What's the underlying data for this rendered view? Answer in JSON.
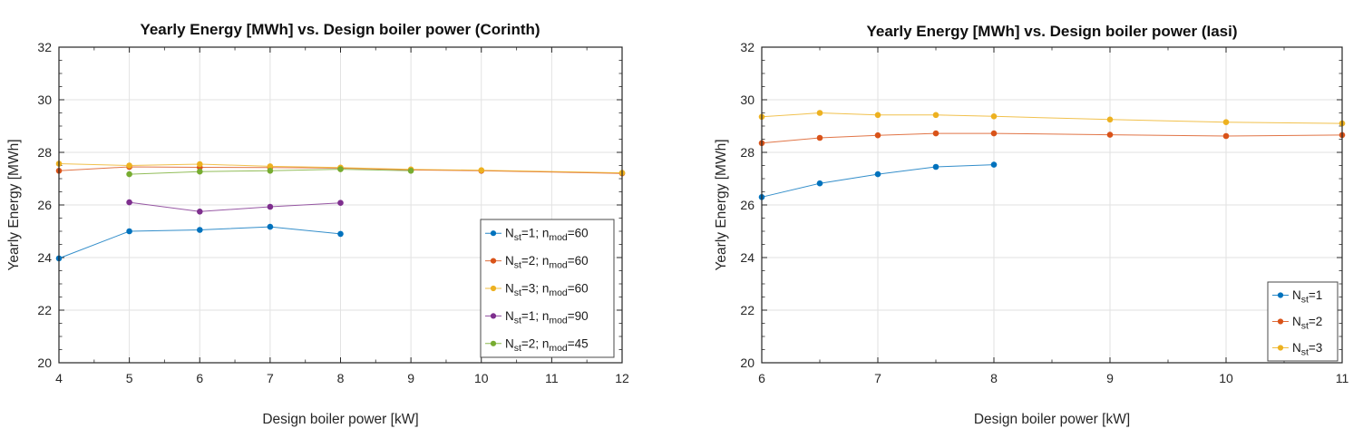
{
  "figure": {
    "background": "#ffffff",
    "description": "Two MATLAB-style line charts of yearly energy versus design boiler power"
  },
  "chart_data": [
    {
      "type": "line",
      "title": "Yearly Energy [MWh] vs. Design boiler power (Corinth)",
      "xlabel": "Design boiler power [kW]",
      "ylabel": "Yearly Energy [MWh]",
      "xlim": [
        4,
        12
      ],
      "ylim": [
        20,
        32
      ],
      "xticks": [
        4,
        5,
        6,
        7,
        8,
        9,
        10,
        11,
        12
      ],
      "yticks": [
        20,
        22,
        24,
        26,
        28,
        30,
        32
      ],
      "minor_tick_step_x": 0.5,
      "minor_tick_step_y": 0.5,
      "grid": true,
      "legend_position": "inside-lower-right",
      "series": [
        {
          "name": "N_st=1; n_mod=60",
          "color": "#0072BD",
          "x": [
            4,
            5,
            6,
            7,
            8
          ],
          "y": [
            23.97,
            25.0,
            25.05,
            25.17,
            24.9
          ]
        },
        {
          "name": "N_st=2; n_mod=60",
          "color": "#D95319",
          "x": [
            4,
            5,
            6,
            7,
            8,
            9,
            10,
            12
          ],
          "y": [
            27.3,
            27.45,
            27.43,
            27.42,
            27.4,
            27.33,
            27.3,
            27.2
          ]
        },
        {
          "name": "N_st=3; n_mod=60",
          "color": "#EDB120",
          "x": [
            4,
            5,
            6,
            7,
            8,
            9,
            10,
            12
          ],
          "y": [
            27.57,
            27.5,
            27.55,
            27.47,
            27.42,
            27.35,
            27.32,
            27.22
          ]
        },
        {
          "name": "N_st=1; n_mod=90",
          "color": "#7E2F8E",
          "x": [
            5,
            6,
            7,
            8
          ],
          "y": [
            26.1,
            25.75,
            25.93,
            26.08
          ]
        },
        {
          "name": "N_st=2; n_mod=45",
          "color": "#77AC30",
          "x": [
            5,
            6,
            7,
            8,
            9
          ],
          "y": [
            27.17,
            27.27,
            27.3,
            27.36,
            27.3
          ]
        }
      ]
    },
    {
      "type": "line",
      "title": "Yearly Energy [MWh] vs. Design boiler power (Iasi)",
      "xlabel": "Design boiler power [kW]",
      "ylabel": "Yearly Energy [MWh]",
      "xlim": [
        6,
        11
      ],
      "ylim": [
        20,
        32
      ],
      "xticks": [
        6,
        7,
        8,
        9,
        10,
        11
      ],
      "yticks": [
        20,
        22,
        24,
        26,
        28,
        30,
        32
      ],
      "minor_tick_step_x": 0.5,
      "minor_tick_step_y": 0.5,
      "grid": true,
      "legend_position": "inside-lower-right",
      "series": [
        {
          "name": "N_st=1",
          "color": "#0072BD",
          "x": [
            6,
            6.5,
            7,
            7.5,
            8
          ],
          "y": [
            26.3,
            26.82,
            27.17,
            27.45,
            27.53
          ]
        },
        {
          "name": "N_st=2",
          "color": "#D95319",
          "x": [
            6,
            6.5,
            7,
            7.5,
            8,
            9,
            10,
            11
          ],
          "y": [
            28.35,
            28.55,
            28.65,
            28.72,
            28.72,
            28.67,
            28.62,
            28.66
          ]
        },
        {
          "name": "N_st=3",
          "color": "#EDB120",
          "x": [
            6,
            6.5,
            7,
            7.5,
            8,
            9,
            10,
            11
          ],
          "y": [
            29.35,
            29.5,
            29.42,
            29.42,
            29.37,
            29.25,
            29.15,
            29.1
          ]
        }
      ]
    }
  ],
  "style": {
    "grid_color": "#e2e2e2",
    "axis_color": "#262626",
    "legend_border_color": "#4a4a4a",
    "legend_background": "#ffffff"
  }
}
